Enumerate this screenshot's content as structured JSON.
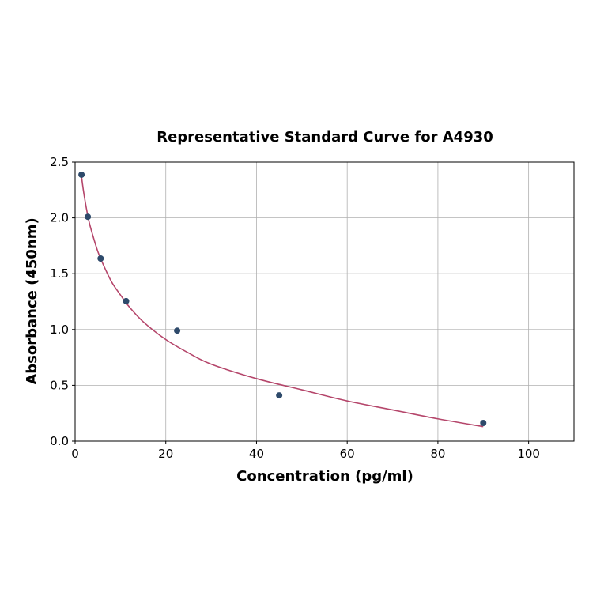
{
  "chart_data": {
    "type": "scatter",
    "title": "Representative Standard Curve for A4930",
    "xlabel": "Concentration (pg/ml)",
    "ylabel": "Absorbance (450nm)",
    "xlim": [
      0,
      110
    ],
    "ylim": [
      0,
      2.5
    ],
    "xticks": [
      "0",
      "20",
      "40",
      "60",
      "80",
      "100"
    ],
    "yticks": [
      "0.0",
      "0.5",
      "1.0",
      "1.5",
      "2.0",
      "2.5"
    ],
    "grid": true,
    "points": {
      "x": [
        1.41,
        2.81,
        5.63,
        11.25,
        22.5,
        45,
        90
      ],
      "y": [
        2.387,
        2.01,
        1.636,
        1.254,
        0.99,
        0.41,
        0.163
      ],
      "color": "#2e4a6b"
    },
    "fit_curve": {
      "x": [
        1.41,
        2,
        3,
        4,
        5,
        6,
        8,
        10,
        12,
        15,
        20,
        25,
        30,
        40,
        50,
        60,
        70,
        80,
        90
      ],
      "y": [
        2.37,
        2.2,
        1.98,
        1.83,
        1.7,
        1.6,
        1.43,
        1.31,
        1.2,
        1.07,
        0.91,
        0.79,
        0.69,
        0.56,
        0.46,
        0.36,
        0.28,
        0.2,
        0.13
      ],
      "color": "#b5466b"
    }
  }
}
